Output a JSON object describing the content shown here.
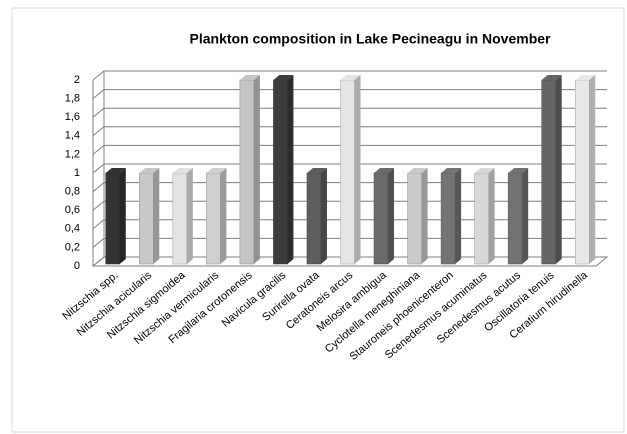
{
  "chart_data": {
    "type": "bar3d",
    "title": "Plankton composition in Lake Pecineagu in November",
    "categories": [
      "Nitzschia spp.",
      "Nitzschia acicularis",
      "Nitzschia sigmoidea",
      "Nitzschia vermicularis",
      "Fragilaria crotonensis",
      "Navicula gracilis",
      "Surirella ovata",
      "Ceratoneis arcus",
      "Melosira ambigua",
      "Cyclotella meneghiniana",
      "Stauroneis phoenicenteron",
      "Scenedesmus acuminatus",
      "Scenedesmus acutus",
      "Oscillatoria tenuis",
      "Ceratium hirudinella"
    ],
    "values": [
      1,
      1,
      1,
      1,
      2,
      2,
      1,
      2,
      1,
      1,
      1,
      1,
      1,
      2,
      2
    ],
    "colors": [
      "#333333",
      "#c8c8c8",
      "#e2e2e2",
      "#d0d0d0",
      "#c4c4c4",
      "#3c3c3c",
      "#5e5e5e",
      "#e4e4e4",
      "#6a6a6a",
      "#cacaca",
      "#747474",
      "#d8d8d8",
      "#727272",
      "#666666",
      "#e8e8e8"
    ],
    "ylim": [
      0,
      2
    ],
    "yticks": [
      0,
      {
        "value": 0.2,
        "label": "0,2"
      },
      {
        "value": 0.4,
        "label": "0,4"
      },
      {
        "value": 0.6,
        "label": "0,6"
      },
      {
        "value": 0.8,
        "label": "0,8"
      },
      1,
      {
        "value": 1.2,
        "label": "1,2"
      },
      {
        "value": 1.4,
        "label": "1,4"
      },
      {
        "value": 1.6,
        "label": "1,6"
      },
      {
        "value": 1.8,
        "label": "1,8"
      },
      2
    ],
    "grid": true
  }
}
